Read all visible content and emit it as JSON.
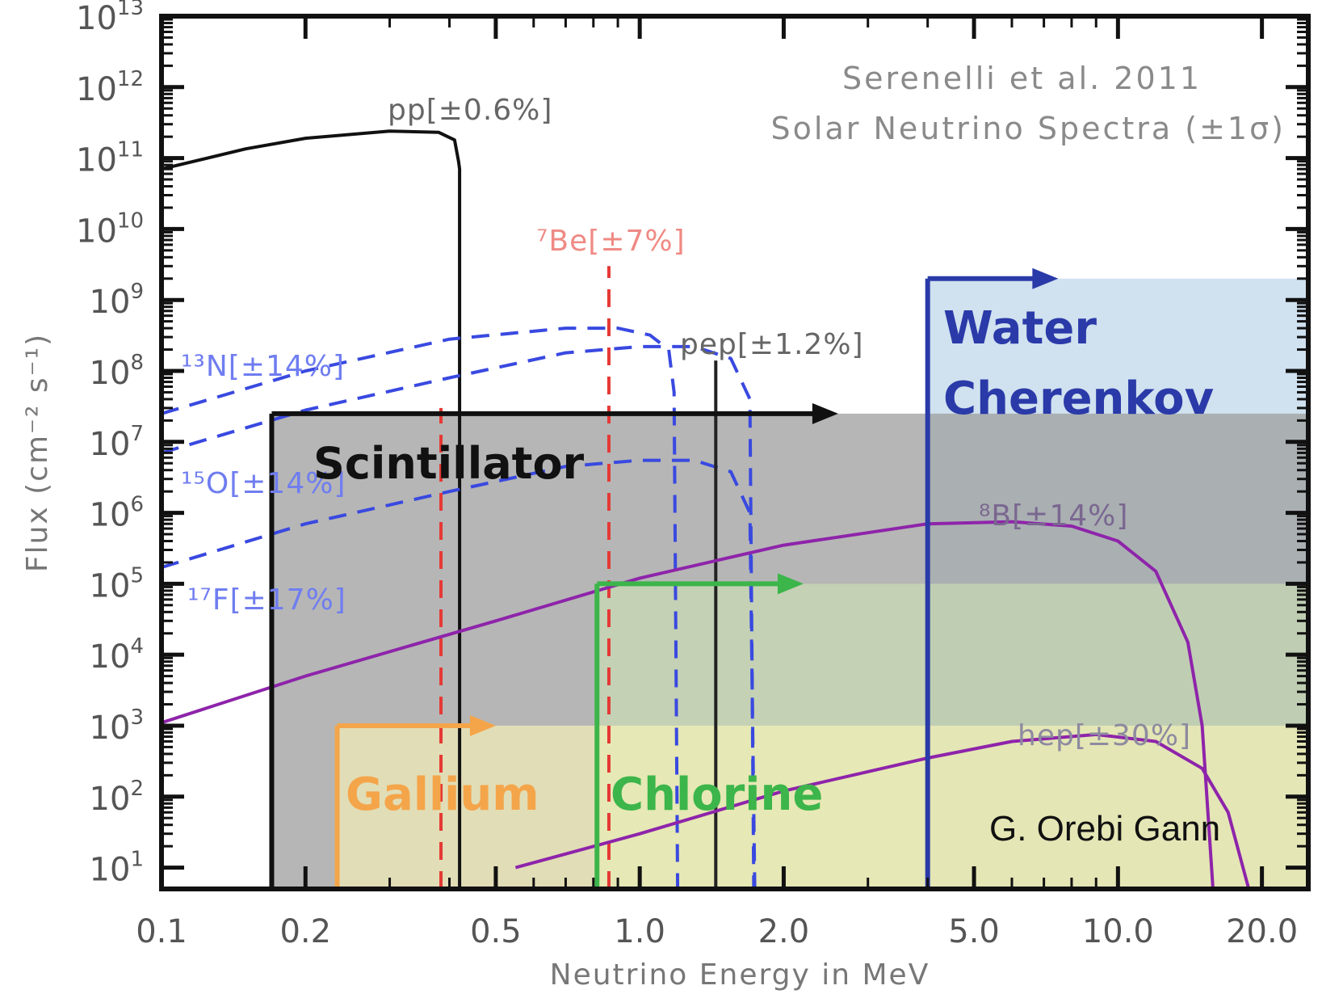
{
  "chart_data": {
    "type": "line",
    "title": "Serenelli et al. 2011",
    "subtitle": "Solar Neutrino Spectra (±1σ)",
    "xlabel": "Neutrino Energy in MeV",
    "ylabel": "Flux (cm⁻² s⁻¹)",
    "x_scale": "log",
    "y_scale": "log",
    "xlim": [
      0.1,
      25
    ],
    "ylim": [
      5,
      10000000000000.0
    ],
    "x_ticks": [
      {
        "value": 0.1,
        "label": "0.1"
      },
      {
        "value": 0.2,
        "label": "0.2"
      },
      {
        "value": 0.5,
        "label": "0.5"
      },
      {
        "value": 1.0,
        "label": "1.0"
      },
      {
        "value": 2.0,
        "label": "2.0"
      },
      {
        "value": 5.0,
        "label": "5.0"
      },
      {
        "value": 10.0,
        "label": "10.0"
      },
      {
        "value": 20.0,
        "label": "20.0"
      }
    ],
    "y_ticks": [
      {
        "value": 10,
        "base": "10",
        "exp": "1"
      },
      {
        "value": 100,
        "base": "10",
        "exp": "2"
      },
      {
        "value": 1000,
        "base": "10",
        "exp": "3"
      },
      {
        "value": 10000,
        "base": "10",
        "exp": "4"
      },
      {
        "value": 100000,
        "base": "10",
        "exp": "5"
      },
      {
        "value": 1000000,
        "base": "10",
        "exp": "6"
      },
      {
        "value": 10000000,
        "base": "10",
        "exp": "7"
      },
      {
        "value": 100000000,
        "base": "10",
        "exp": "8"
      },
      {
        "value": 1000000000,
        "base": "10",
        "exp": "9"
      },
      {
        "value": 10000000000,
        "base": "10",
        "exp": "10"
      },
      {
        "value": 100000000000,
        "base": "10",
        "exp": "11"
      },
      {
        "value": 1000000000000,
        "base": "10",
        "exp": "12"
      },
      {
        "value": 10000000000000,
        "base": "10",
        "exp": "13"
      }
    ],
    "detector_ranges": [
      {
        "name": "Gallium",
        "threshold_MeV": 0.233,
        "flux_top": 1000,
        "color": "#f4a54a",
        "fill": "#fdf7b5"
      },
      {
        "name": "Chlorine",
        "threshold_MeV": 0.814,
        "flux_top": 100000,
        "color": "#3cb54a",
        "fill": "#cfe8b4"
      },
      {
        "name": "Scintillator",
        "threshold_MeV": 0.17,
        "flux_top": 25000000,
        "color": "#111111",
        "fill": "#9e9e9e"
      },
      {
        "name": "Water Cherenkov",
        "threshold_MeV": 4.0,
        "flux_top": 2000000000,
        "color": "#2a3aa8",
        "fill": "#a9c9e3"
      }
    ],
    "series": [
      {
        "id": "pp",
        "name": "pp[±0.6%]",
        "kind": "continuum",
        "color": "#111111",
        "dash": "solid",
        "points": [
          [
            0.1,
            70000000000.0
          ],
          [
            0.15,
            135000000000.0
          ],
          [
            0.2,
            190000000000.0
          ],
          [
            0.3,
            240000000000.0
          ],
          [
            0.38,
            230000000000.0
          ],
          [
            0.41,
            180000000000.0
          ],
          [
            0.418,
            90000000000.0
          ],
          [
            0.42,
            70000000000.0
          ],
          [
            0.42,
            5
          ]
        ]
      },
      {
        "id": "be7",
        "name": "⁷Be[±7%]",
        "kind": "lines",
        "color": "#e53935",
        "dash": "dashed",
        "lines": [
          {
            "energy": 0.384,
            "flux_top": 30000000.0
          },
          {
            "energy": 0.862,
            "flux_top": 3000000000.0
          }
        ]
      },
      {
        "id": "n13",
        "name": "¹³N[±14%]",
        "kind": "continuum",
        "color": "#3949e0",
        "dash": "dashed",
        "points": [
          [
            0.1,
            25000000.0
          ],
          [
            0.2,
            100000000.0
          ],
          [
            0.4,
            280000000.0
          ],
          [
            0.7,
            400000000.0
          ],
          [
            0.9,
            400000000.0
          ],
          [
            1.05,
            320000000.0
          ],
          [
            1.15,
            200000000.0
          ],
          [
            1.18,
            50000000.0
          ],
          [
            1.2,
            5
          ]
        ]
      },
      {
        "id": "o15",
        "name": "¹⁵O[±14%]",
        "kind": "continuum",
        "color": "#3949e0",
        "dash": "dashed",
        "points": [
          [
            0.1,
            7000000.0
          ],
          [
            0.2,
            28000000.0
          ],
          [
            0.4,
            80000000.0
          ],
          [
            0.7,
            180000000.0
          ],
          [
            1.0,
            220000000.0
          ],
          [
            1.3,
            220000000.0
          ],
          [
            1.55,
            150000000.0
          ],
          [
            1.7,
            40000000.0
          ],
          [
            1.732,
            5
          ]
        ]
      },
      {
        "id": "f17",
        "name": "¹⁷F[±17%]",
        "kind": "continuum",
        "color": "#3949e0",
        "dash": "dashed",
        "points": [
          [
            0.1,
            170000.0
          ],
          [
            0.2,
            700000.0
          ],
          [
            0.4,
            2000000.0
          ],
          [
            0.7,
            4500000.0
          ],
          [
            1.0,
            5500000.0
          ],
          [
            1.3,
            5500000.0
          ],
          [
            1.55,
            3800000.0
          ],
          [
            1.7,
            1000000.0
          ],
          [
            1.74,
            5
          ]
        ]
      },
      {
        "id": "pep",
        "name": "pep[±1.2%]",
        "kind": "lines",
        "color": "#222222",
        "dash": "solid",
        "lines": [
          {
            "energy": 1.442,
            "flux_top": 140000000.0
          }
        ]
      },
      {
        "id": "b8",
        "name": "⁸B[±14%]",
        "kind": "continuum",
        "color": "#8e24aa",
        "dash": "solid",
        "points": [
          [
            0.1,
            1100.0
          ],
          [
            0.2,
            5000.0
          ],
          [
            0.5,
            30000.0
          ],
          [
            1.0,
            120000.0
          ],
          [
            2.0,
            350000.0
          ],
          [
            4.0,
            700000.0
          ],
          [
            6.0,
            750000.0
          ],
          [
            8.0,
            650000.0
          ],
          [
            10.0,
            400000.0
          ],
          [
            12.0,
            150000.0
          ],
          [
            14.0,
            15000.0
          ],
          [
            15.0,
            1000.0
          ],
          [
            15.8,
            5
          ]
        ]
      },
      {
        "id": "hep",
        "name": "hep[±30%]",
        "kind": "continuum",
        "color": "#8e24aa",
        "dash": "solid",
        "points": [
          [
            0.55,
            10
          ],
          [
            1.0,
            30
          ],
          [
            2.0,
            120
          ],
          [
            4.0,
            350
          ],
          [
            6.0,
            600
          ],
          [
            9.0,
            750
          ],
          [
            12.0,
            600
          ],
          [
            15.0,
            250
          ],
          [
            17.0,
            60
          ],
          [
            18.77,
            5
          ]
        ]
      }
    ],
    "grid": false,
    "legend": "none"
  },
  "labels": {
    "title": "Serenelli et al. 2011",
    "subtitle": "Solar Neutrino Spectra (±1σ)",
    "xlabel": "Neutrino Energy in MeV",
    "ylabel": "Flux (cm⁻² s⁻¹)",
    "pp": "pp[±0.6%]",
    "be7": "⁷Be[±7%]",
    "n13": "¹³N[±14%]",
    "o15": "¹⁵O[±14%]",
    "f17": "¹⁷F[±17%]",
    "pep": "pep[±1.2%]",
    "b8": "⁸B[±14%]",
    "hep": "hep[±30%]",
    "gallium": "Gallium",
    "chlorine": "Chlorine",
    "scintillator": "Scintillator",
    "water_line1": "Water",
    "water_line2": "Cherenkov",
    "credit": "G. Orebi Gann"
  }
}
